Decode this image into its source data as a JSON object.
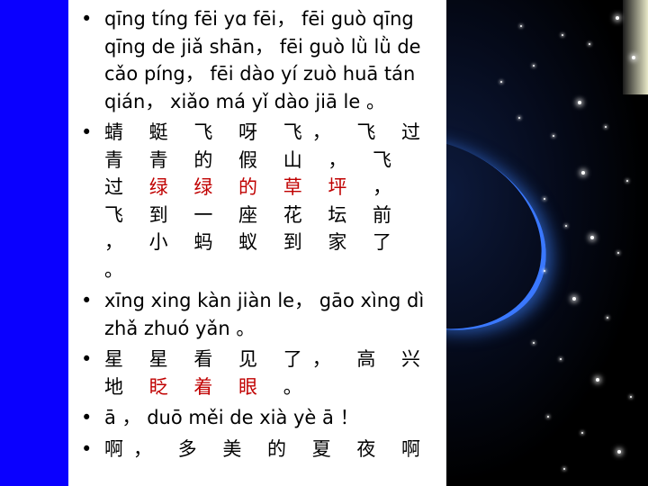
{
  "items": [
    {
      "segments": [
        {
          "text": "qīng tíng fēi yɑ fēi， fēi guò qīng qīng de jiǎ shān， fēi guò lǜ lǜ de cǎo píng， fēi dào yí zuò huā tán qián， xiǎo má yǐ dào jiā le 。",
          "red": false
        }
      ]
    },
    {
      "han": true,
      "segments": [
        {
          "text": "蜻 蜓 飞 呀 飞， 飞 过 青 青 的 假 山 ， 飞 过 ",
          "red": false
        },
        {
          "text": "绿 绿 的 草 坪",
          "red": true
        },
        {
          "text": " ， 飞 到 一 座 花 坛 前 ， 小 蚂 蚁 到 家 了 。",
          "red": false
        }
      ]
    },
    {
      "segments": [
        {
          "text": "xīng xing kàn jiàn le， gāo xìng dì zhǎ zhuó yǎn 。",
          "red": false
        }
      ]
    },
    {
      "han": true,
      "segments": [
        {
          "text": "星 星 看 见 了， 高 兴 地 ",
          "red": false
        },
        {
          "text": "眨 着 眼",
          "red": true
        },
        {
          "text": " 。",
          "red": false
        }
      ]
    },
    {
      "segments": [
        {
          "text": "ā ， duō měi de xià yè ā ！",
          "red": false
        }
      ]
    },
    {
      "han": true,
      "segments": [
        {
          "text": "啊， 多 美 的 夏 夜 啊",
          "red": false
        }
      ]
    }
  ],
  "colors": {
    "left_band": "#0a00ff",
    "highlight": "#c00000",
    "night": "#000000"
  }
}
